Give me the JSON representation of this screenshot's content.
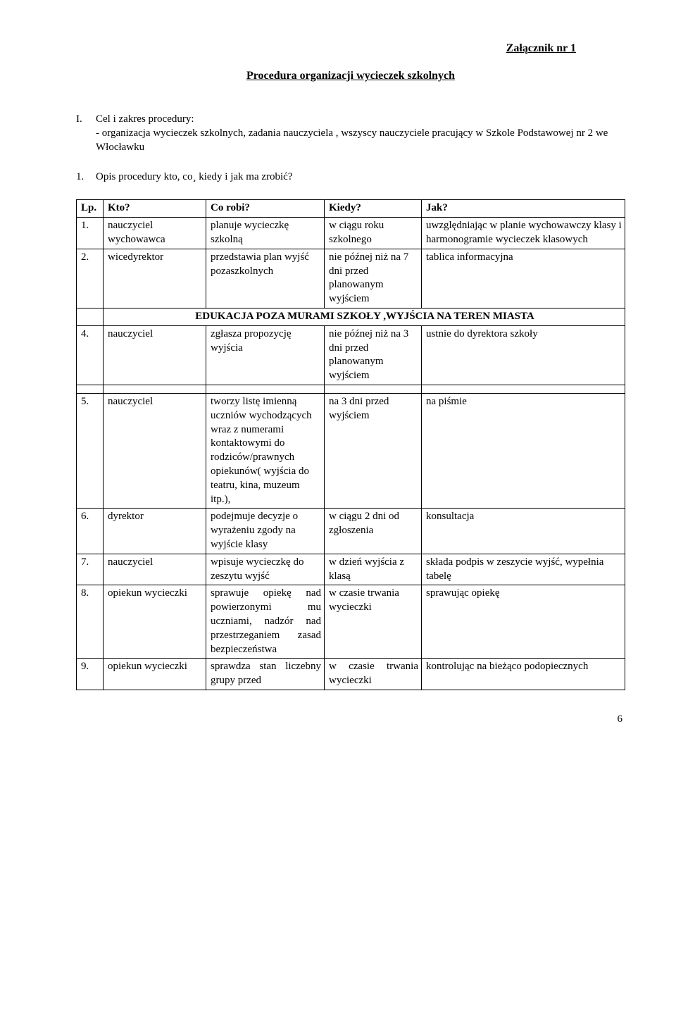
{
  "attachment_label": "Załącznik nr 1",
  "proc_title": "Procedura organizacji wycieczek szkolnych",
  "section1": {
    "num": "I.",
    "heading": "Cel i zakres procedury:",
    "line": "- organizacja wycieczek szkolnych, zadania nauczyciela , wszyscy nauczyciele pracujący w Szkole Podstawowej nr 2 we Włocławku"
  },
  "section2": {
    "num": "1.",
    "text": "Opis procedury kto, co¸ kiedy i jak ma zrobić?"
  },
  "columns": {
    "lp": "Lp.",
    "kto": "Kto?",
    "co": "Co robi?",
    "kiedy": "Kiedy?",
    "jak": "Jak?"
  },
  "col_widths": {
    "lp": "38px",
    "kto": "146px",
    "co": "168px",
    "kiedy": "138px",
    "jak": "auto"
  },
  "banner": "EDUKACJA POZA MURAMI SZKOŁY ,WYJŚCIA NA TEREN MIASTA",
  "rows": [
    {
      "lp": "1.",
      "kto": "nauczyciel wychowawca",
      "co": "planuje wycieczkę szkolną",
      "kiedy": "w ciągu roku szkolnego",
      "jak": "uwzględniając w planie wychowawczy klasy i harmonogramie wycieczek klasowych"
    },
    {
      "lp": "2.",
      "kto": "wicedyrektor",
      "co": "przedstawia plan wyjść pozaszkolnych",
      "kiedy": "nie późnej niż na  7 dni przed planowanym wyjściem",
      "jak": "tablica informacyjna"
    },
    {
      "lp": "4.",
      "kto": "nauczyciel",
      "co": "zgłasza propozycję wyjścia",
      "kiedy": "nie późnej niż na  3 dni przed planowanym wyjściem",
      "jak": "ustnie do dyrektora szkoły"
    },
    {
      "lp": "5.",
      "kto": "nauczyciel",
      "co": "tworzy listę imienną uczniów wychodzących  wraz z numerami kontaktowymi do rodziców/prawnych opiekunów( wyjścia do teatru, kina, muzeum itp.),",
      "kiedy": "na 3 dni przed wyjściem",
      "jak": "na piśmie"
    },
    {
      "lp": "6.",
      "kto": "dyrektor",
      "co": "podejmuje decyzje o wyrażeniu zgody na wyjście klasy",
      "kiedy": "w ciągu 2 dni od zgłoszenia",
      "jak": "konsultacja"
    },
    {
      "lp": "7.",
      "kto": "nauczyciel",
      "co": "wpisuje wycieczkę do zeszytu wyjść",
      "kiedy": "w dzień wyjścia z klasą",
      "jak": "składa podpis w zeszycie wyjść, wypełnia tabelę"
    },
    {
      "lp": "8.",
      "kto": "opiekun wycieczki",
      "co": "sprawuje  opiekę  nad powierzonymi  mu uczniami, nadzór nad przestrzeganiem zasad bezpieczeństwa",
      "kiedy": "w czasie trwania wycieczki",
      "jak": "sprawując opiekę"
    },
    {
      "lp": "9.",
      "kto": "opiekun wycieczki",
      "co": "sprawdza stan liczebny grupy przed",
      "kiedy": "w  czasie  trwania wycieczki",
      "jak": "kontrolując na bieżąco podopiecznych"
    }
  ],
  "page_number": "6",
  "colors": {
    "text": "#000000",
    "background": "#ffffff",
    "border": "#000000"
  }
}
